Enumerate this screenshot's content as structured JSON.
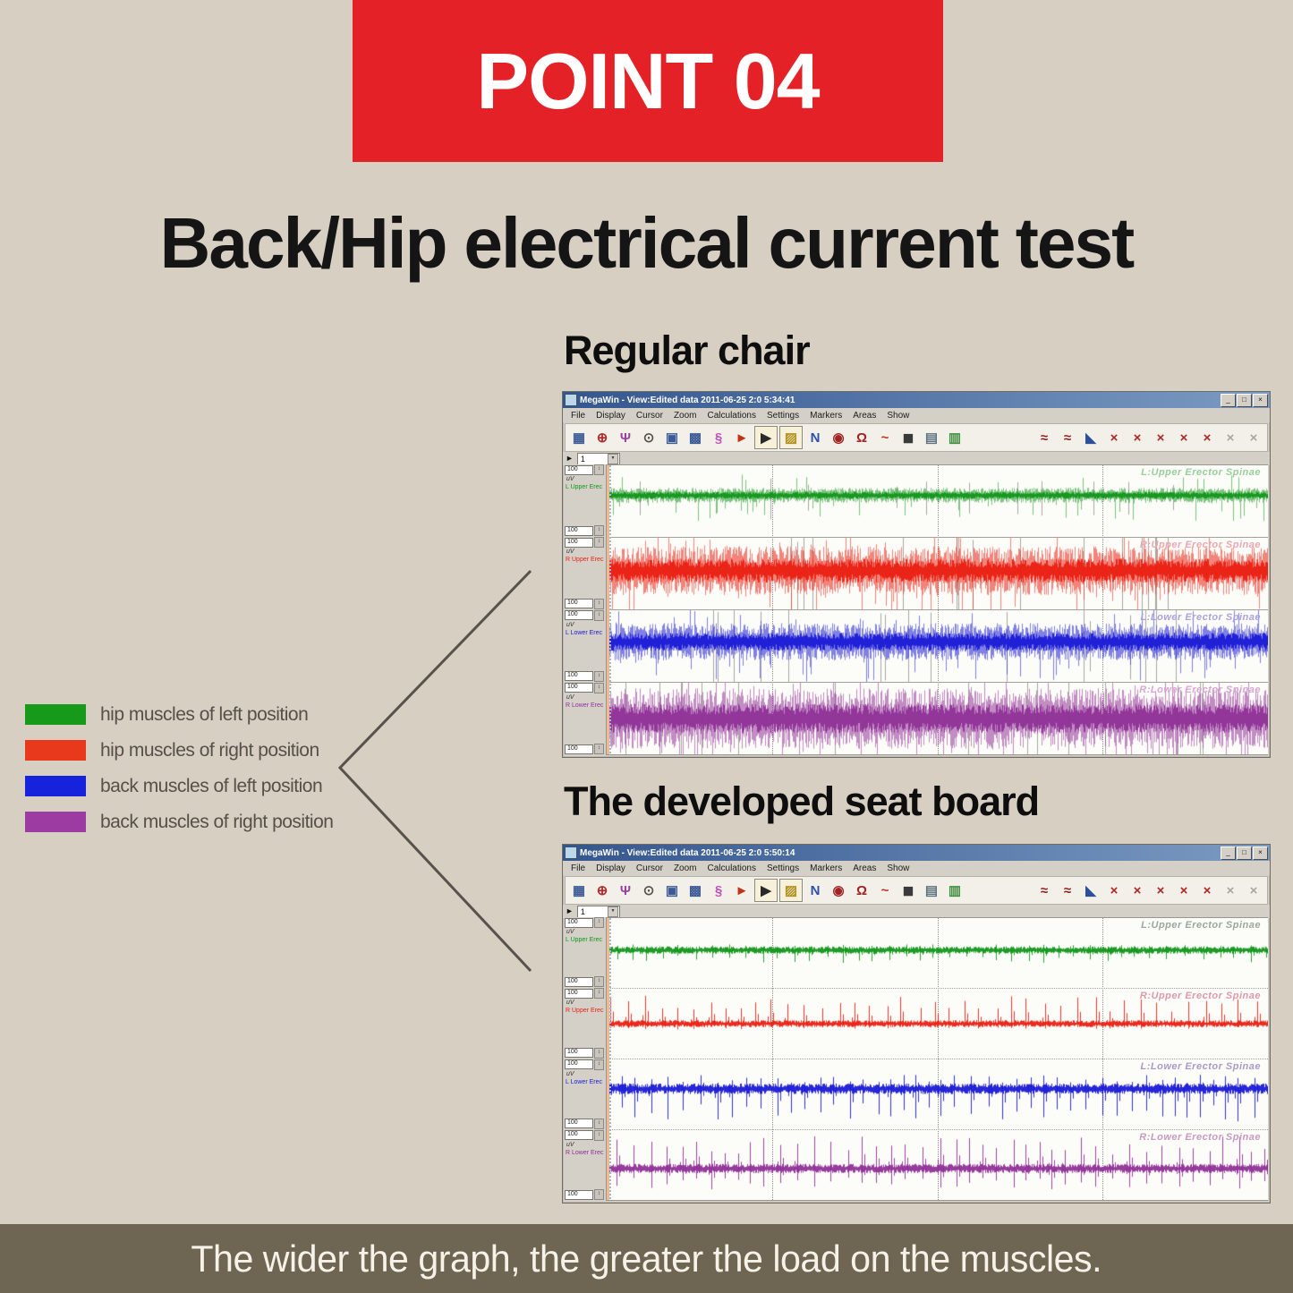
{
  "page": {
    "background": "#d6cfc2"
  },
  "banner": {
    "label": "POINT 04",
    "background": "#e32127",
    "text_color": "#ffffff"
  },
  "main_title": "Back/Hip electrical current test",
  "legend": {
    "items": [
      {
        "label": "hip muscles of left position",
        "color": "#17991a"
      },
      {
        "label": "hip muscles of right position",
        "color": "#e8391c"
      },
      {
        "label": "back muscles of left position",
        "color": "#1722dd"
      },
      {
        "label": "back muscles of right position",
        "color": "#9c3ca3"
      }
    ]
  },
  "connector": {
    "color": "#57524b"
  },
  "window_buttons": [
    {
      "name": "minimize-button",
      "glyph": "_"
    },
    {
      "name": "maximize-button",
      "glyph": "□"
    },
    {
      "name": "close-button",
      "glyph": "×"
    }
  ],
  "menu": [
    "File",
    "Display",
    "Cursor",
    "Zoom",
    "Calculations",
    "Settings",
    "Markers",
    "Areas",
    "Show"
  ],
  "controls": {
    "flag_glyph": "►",
    "dropdown_arrow_glyph": "▼",
    "spinner_glyph": "↕"
  },
  "toolbar_left": [
    {
      "name": "save-icon",
      "glyph": "▦",
      "color": "#3c5a96"
    },
    {
      "name": "zoom-in-icon",
      "glyph": "⊕",
      "color": "#aa2f2f"
    },
    {
      "name": "cursor-tool-icon",
      "glyph": "Ψ",
      "color": "#9a3fa0"
    },
    {
      "name": "magnifier-icon",
      "glyph": "⊙",
      "color": "#55534e"
    },
    {
      "name": "view-window-icon",
      "glyph": "▣",
      "color": "#3c5a96"
    },
    {
      "name": "view-grid-icon",
      "glyph": "▩",
      "color": "#3c5a96"
    },
    {
      "name": "amplitude-tool-icon",
      "glyph": "§",
      "color": "#c050c0"
    },
    {
      "name": "marker-arrow-icon",
      "glyph": "►",
      "color": "#c23018"
    },
    {
      "name": "marker-flag-icon",
      "glyph": "▶",
      "color": "#2a2a2a",
      "pressed": true
    },
    {
      "name": "draw-tool-icon",
      "glyph": "▨",
      "color": "#b09020",
      "pressed": true
    },
    {
      "name": "point-select-icon",
      "glyph": "N",
      "color": "#2f4fae"
    },
    {
      "name": "analysis-icon",
      "glyph": "◉",
      "color": "#a02525"
    },
    {
      "name": "spectrum-icon",
      "glyph": "Ω",
      "color": "#a02525"
    },
    {
      "name": "signal-icon",
      "glyph": "~",
      "color": "#c23018"
    },
    {
      "name": "video-icon",
      "glyph": "◼",
      "color": "#3a3a3a"
    },
    {
      "name": "report-icon",
      "glyph": "▤",
      "color": "#5d7280"
    },
    {
      "name": "export-icon",
      "glyph": "▥",
      "color": "#3f8f3f"
    }
  ],
  "toolbar_right": [
    {
      "name": "emg-overlay-icon",
      "glyph": "≈",
      "color": "#8c2222"
    },
    {
      "name": "emg-overlay2-icon",
      "glyph": "≈",
      "color": "#8c2222"
    },
    {
      "name": "area-analysis-icon",
      "glyph": "◣",
      "color": "#2c4f9c"
    },
    {
      "name": "muscle-test1-icon",
      "glyph": "×",
      "color": "#b12424"
    },
    {
      "name": "muscle-test2-icon",
      "glyph": "×",
      "color": "#b12424"
    },
    {
      "name": "muscle-test3-icon",
      "glyph": "×",
      "color": "#b12424"
    },
    {
      "name": "muscle-test4-icon",
      "glyph": "×",
      "color": "#b12424"
    },
    {
      "name": "muscle-test5-icon",
      "glyph": "×",
      "color": "#b12424"
    },
    {
      "name": "history-back-icon",
      "glyph": "×",
      "color": "#a8a69e"
    },
    {
      "name": "history-forward-icon",
      "glyph": "×",
      "color": "#a8a69e"
    }
  ],
  "sections": [
    {
      "heading": "Regular chair",
      "window": {
        "title": "MegaWin - View:Edited data 2011-06-25 2:0 5:34:41",
        "marker_value": "1",
        "channels": [
          {
            "left_label": "L Upper Erec",
            "unit": "uV",
            "scale_top": "100",
            "scale_bottom": "100",
            "plot_label": "L:Upper Erector Spinae",
            "trace_color": "#12961b",
            "plot_label_color": "#96cf9b",
            "wave": {
              "mode": "dense",
              "seed": 101,
              "amp": 6.5,
              "spike_prob": 0.08,
              "spike_gain": 3.4,
              "down_bias": 0.85,
              "mid": 0.42
            }
          },
          {
            "left_label": "R Upper Erec",
            "unit": "uV",
            "scale_top": "100",
            "scale_bottom": "100",
            "plot_label": "R:Upper Erector Spinae",
            "trace_color": "#ea2013",
            "plot_label_color": "#eba6ae",
            "wave": {
              "mode": "dense",
              "seed": 102,
              "amp": 21,
              "spike_prob": 0.12,
              "spike_gain": 2.1,
              "down_bias": 0.55,
              "mid": 0.46
            }
          },
          {
            "left_label": "L Lower Erec",
            "unit": "uV",
            "scale_top": "100",
            "scale_bottom": "100",
            "plot_label": "L:Lower Erector Spinae",
            "trace_color": "#1b1bd6",
            "plot_label_color": "#aaa2dc",
            "wave": {
              "mode": "dense",
              "seed": 103,
              "amp": 16,
              "spike_prob": 0.12,
              "spike_gain": 2.3,
              "down_bias": 0.7,
              "mid": 0.44
            }
          },
          {
            "left_label": "R Lower Erec",
            "unit": "uV",
            "scale_top": "100",
            "scale_bottom": "100",
            "plot_label": "R:Lower Erector Spinae",
            "trace_color": "#8f3197",
            "plot_label_color": "#d7a6d2",
            "wave": {
              "mode": "dense",
              "seed": 104,
              "amp": 26,
              "spike_prob": 0.15,
              "spike_gain": 1.8,
              "down_bias": 0.5,
              "mid": 0.5
            }
          }
        ]
      }
    },
    {
      "heading": "The developed seat board",
      "window": {
        "title": "MegaWin - View:Edited data 2011-06-25 2:0 5:50:14",
        "marker_value": "1",
        "channels": [
          {
            "left_label": "L Upper Erec",
            "unit": "uV",
            "scale_top": "100",
            "scale_bottom": "100",
            "plot_label": "L:Upper Erector Spinae",
            "trace_color": "#12961b",
            "plot_label_color": "#9aa89a",
            "wave": {
              "mode": "periodic",
              "seed": 201,
              "base": 3.2,
              "period": 17,
              "spike_up": 5,
              "spike_down": 11,
              "mid": 0.46
            }
          },
          {
            "left_label": "R Upper Erec",
            "unit": "uV",
            "scale_top": "100",
            "scale_bottom": "100",
            "plot_label": "R:Upper Erector Spinae",
            "trace_color": "#ea2013",
            "plot_label_color": "#dd9aa8",
            "wave": {
              "mode": "periodic",
              "seed": 202,
              "base": 3,
              "period": 18,
              "spike_up": 24,
              "spike_down": 5,
              "mid": 0.5
            }
          },
          {
            "left_label": "L Lower Erec",
            "unit": "uV",
            "scale_top": "100",
            "scale_bottom": "100",
            "plot_label": "L:Lower Erector Spinae",
            "trace_color": "#1b1bd6",
            "plot_label_color": "#a89ac8",
            "wave": {
              "mode": "periodic",
              "seed": 203,
              "base": 4.5,
              "period": 16,
              "spike_up": 12,
              "spike_down": 28,
              "mid": 0.42
            }
          },
          {
            "left_label": "R Lower Erec",
            "unit": "uV",
            "scale_top": "100",
            "scale_bottom": "100",
            "plot_label": "R:Lower Erector Spinae",
            "trace_color": "#8f3197",
            "plot_label_color": "#c89ac0",
            "wave": {
              "mode": "periodic",
              "seed": 204,
              "base": 4,
              "period": 16,
              "spike_up": 28,
              "spike_down": 18,
              "mid": 0.55
            }
          }
        ]
      }
    }
  ],
  "footer": {
    "text": "The wider the graph, the greater the load on the muscles.",
    "background": "#6e6553",
    "text_color": "#f6f2e7"
  }
}
